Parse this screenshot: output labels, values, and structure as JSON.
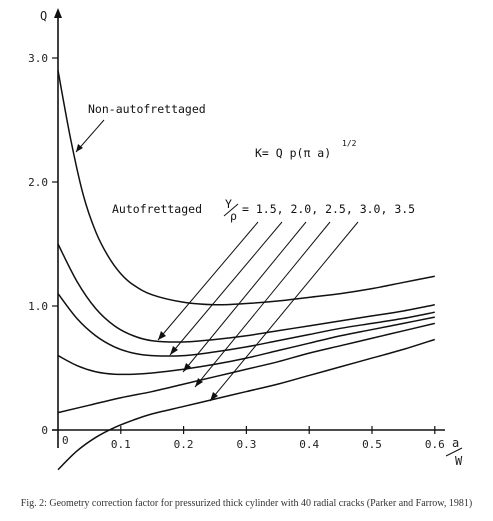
{
  "chart_data": {
    "type": "line",
    "xlabel_num": "a",
    "xlabel_den": "W",
    "ylabel": "Q",
    "xlim": [
      0,
      0.62
    ],
    "ylim": [
      -0.35,
      3.2
    ],
    "x_ticks": [
      0.1,
      0.2,
      0.3,
      0.4,
      0.5,
      0.6
    ],
    "x_tick_labels": [
      "0.1",
      "0.2",
      "0.3",
      "0.4",
      "0.5",
      "0.6"
    ],
    "y_ticks": [
      0,
      1.0,
      2.0,
      3.0
    ],
    "y_tick_labels": [
      "0",
      "1.0",
      "2.0",
      "3.0"
    ],
    "origin_label": "0",
    "series": [
      {
        "name": "Non-autofrettaged",
        "x": [
          0,
          0.02,
          0.04,
          0.06,
          0.08,
          0.1,
          0.12,
          0.15,
          0.2,
          0.25,
          0.3,
          0.35,
          0.4,
          0.45,
          0.5,
          0.55,
          0.6
        ],
        "y": [
          2.9,
          2.35,
          1.9,
          1.6,
          1.4,
          1.26,
          1.17,
          1.09,
          1.03,
          1.01,
          1.02,
          1.04,
          1.07,
          1.1,
          1.14,
          1.19,
          1.24
        ]
      },
      {
        "x": [
          0,
          0.03,
          0.06,
          0.09,
          0.12,
          0.15,
          0.2,
          0.25,
          0.3,
          0.35,
          0.4,
          0.45,
          0.5,
          0.55,
          0.6
        ],
        "y": [
          1.5,
          1.2,
          0.98,
          0.84,
          0.76,
          0.72,
          0.71,
          0.73,
          0.76,
          0.8,
          0.84,
          0.88,
          0.92,
          0.96,
          1.01
        ]
      },
      {
        "x": [
          0,
          0.03,
          0.06,
          0.09,
          0.12,
          0.15,
          0.2,
          0.25,
          0.3,
          0.35,
          0.4,
          0.45,
          0.5,
          0.55,
          0.6
        ],
        "y": [
          1.1,
          0.9,
          0.76,
          0.67,
          0.62,
          0.6,
          0.6,
          0.63,
          0.67,
          0.72,
          0.77,
          0.82,
          0.86,
          0.9,
          0.95
        ]
      },
      {
        "x": [
          0,
          0.03,
          0.06,
          0.09,
          0.12,
          0.15,
          0.2,
          0.25,
          0.3,
          0.35,
          0.4,
          0.45,
          0.5,
          0.55,
          0.6
        ],
        "y": [
          0.6,
          0.52,
          0.47,
          0.45,
          0.45,
          0.46,
          0.49,
          0.53,
          0.58,
          0.64,
          0.7,
          0.76,
          0.81,
          0.86,
          0.91
        ]
      },
      {
        "x": [
          0,
          0.05,
          0.1,
          0.15,
          0.2,
          0.25,
          0.3,
          0.35,
          0.4,
          0.45,
          0.5,
          0.55,
          0.6
        ],
        "y": [
          0.14,
          0.2,
          0.26,
          0.31,
          0.37,
          0.43,
          0.49,
          0.55,
          0.62,
          0.68,
          0.74,
          0.8,
          0.86
        ]
      },
      {
        "x": [
          0,
          0.03,
          0.06,
          0.09,
          0.12,
          0.15,
          0.2,
          0.25,
          0.3,
          0.35,
          0.4,
          0.45,
          0.5,
          0.55,
          0.6
        ],
        "y": [
          -0.32,
          -0.17,
          -0.06,
          0.02,
          0.08,
          0.13,
          0.19,
          0.25,
          0.31,
          0.37,
          0.44,
          0.51,
          0.58,
          0.65,
          0.73
        ]
      }
    ],
    "annotations": {
      "non_autofrettaged": "Non-autofrettaged",
      "formula_main": "K= Q p(π a)",
      "formula_exp": "1/2",
      "autofrettaged": "Autofrettaged",
      "ratio_num": "Y",
      "ratio_den": "ρ",
      "ratio_values": "= 1.5, 2.0, 2.5, 3.0, 3.5"
    }
  },
  "caption": "Fig. 2: Geometry correction factor for pressurized thick cylinder with 40 radial cracks (Parker and Farrow, 1981)"
}
